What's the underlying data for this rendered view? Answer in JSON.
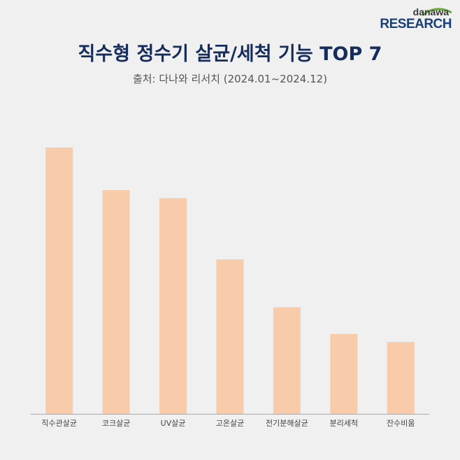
{
  "branding": {
    "logo_top": "danawa",
    "logo_bottom": "RESEARCH"
  },
  "header": {
    "title": "직수형 정수기 살균/세척 기능 TOP 7",
    "subtitle": "출처: 다나와 리서치 (2024.01~2024.12)"
  },
  "colors": {
    "background": "#f0f0f0",
    "bar": "#f8cbab",
    "title": "#152c5c",
    "axis": "#aaaaaa",
    "logo_accent": "#6aaa3a"
  },
  "chart_data": {
    "type": "bar",
    "title": "직수형 정수기 살균/세척 기능 TOP 7",
    "subtitle": "출처: 다나와 리서치 (2024.01~2024.12)",
    "categories": [
      "직수관살균",
      "코크살균",
      "UV살균",
      "고온살균",
      "전기분해살균",
      "분리세척",
      "잔수비움"
    ],
    "values": [
      100,
      84,
      81,
      58,
      40,
      30,
      27
    ],
    "xlabel": "",
    "ylabel": "",
    "ylim": [
      0,
      100
    ],
    "grid": false,
    "legend": "none"
  }
}
